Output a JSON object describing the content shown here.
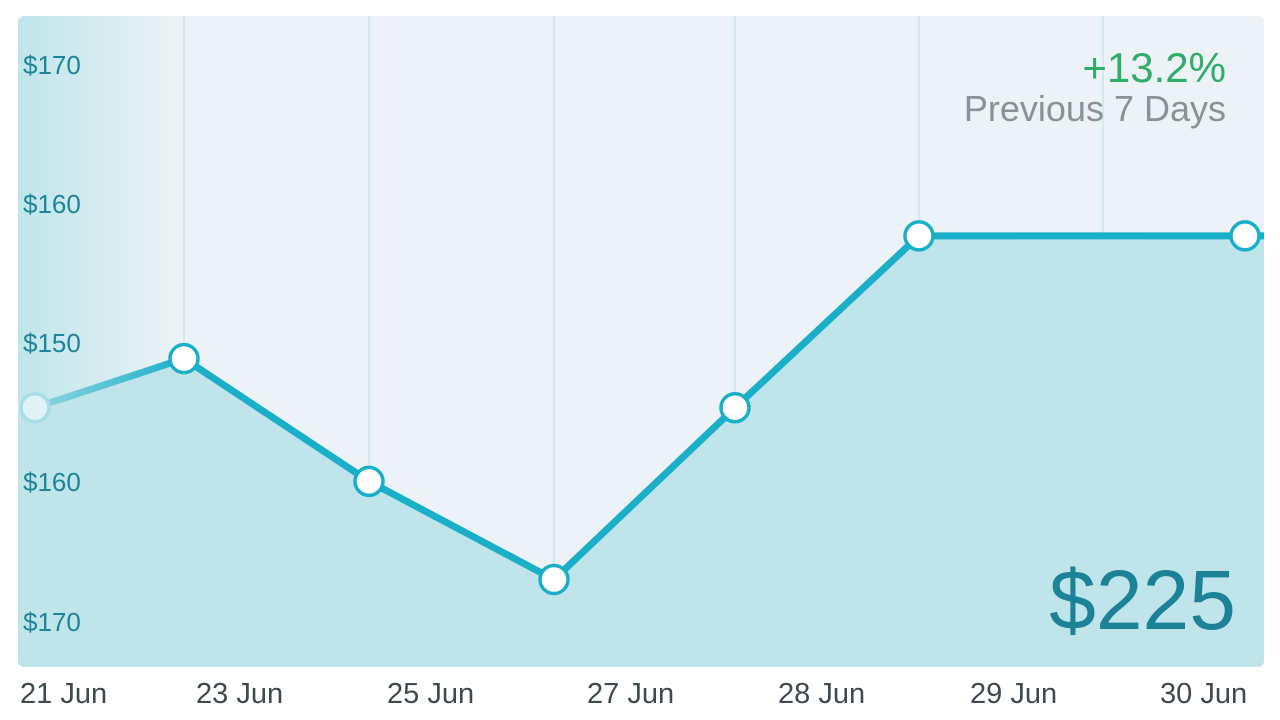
{
  "header": {
    "change": "+13.2%",
    "period": "Previous 7 Days"
  },
  "summary": {
    "value": "$225"
  },
  "colors": {
    "line": "#1aafc9",
    "area": "#bfe5eb",
    "panel": "#ecf2f5",
    "change": "#2fae6a",
    "value": "#1c8298",
    "tick": "#1e8599"
  },
  "chart_data": {
    "type": "area",
    "title": "",
    "xlabel": "",
    "ylabel": "",
    "y_tick_labels": [
      "$170",
      "$160",
      "$150",
      "$160",
      "$170"
    ],
    "x_tick_labels": [
      "21 Jun",
      "23 Jun",
      "25 Jun",
      "27 Jun",
      "28 Jun",
      "29 Jun",
      "30 Jun"
    ],
    "ylim": [
      130,
      170
    ],
    "grid": "vertical",
    "series": [
      {
        "x": [
          "21 Jun",
          "23 Jun",
          "25 Jun",
          "27 Jun",
          "28 Jun",
          "29 Jun",
          "30 Jun"
        ],
        "values": [
          156,
          158,
          153,
          149,
          156,
          163,
          163
        ]
      }
    ]
  }
}
